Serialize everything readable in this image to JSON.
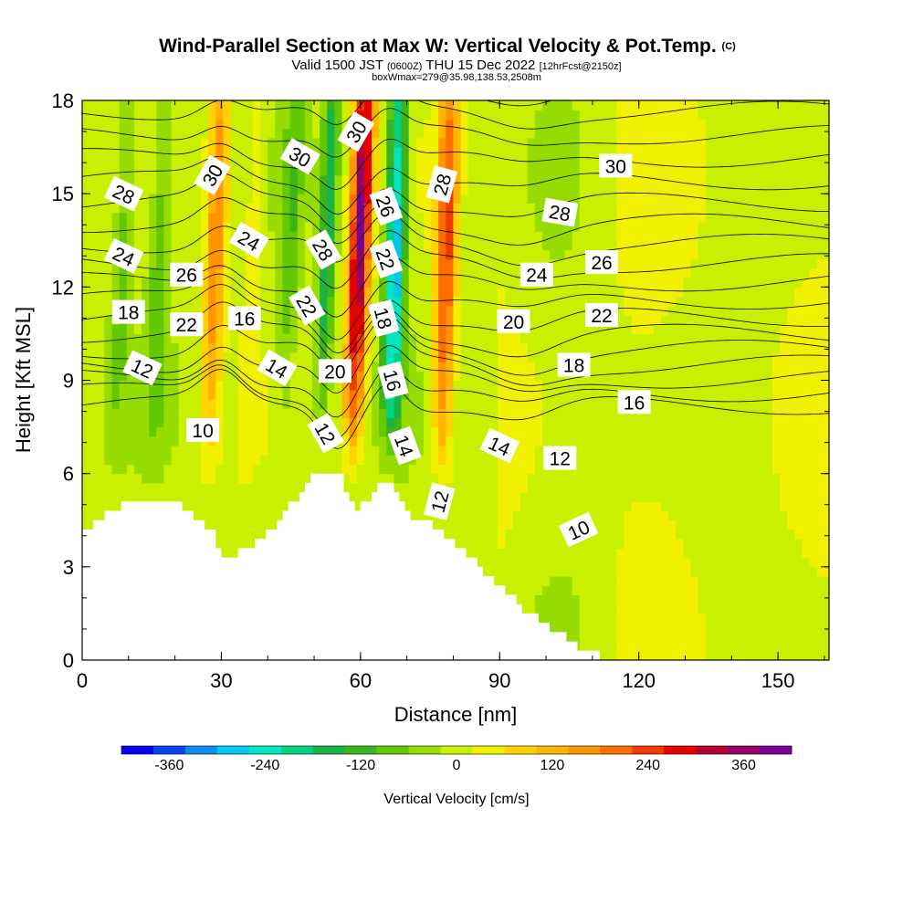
{
  "chart_data": {
    "type": "heatmap",
    "title": "Wind-Parallel Section at Max W: Vertical Velocity & Pot.Temp.",
    "title_mark": "(C)",
    "subtitle_parts": [
      "Valid 1500 JST",
      "(0600Z)",
      "THU 15 Dec 2022",
      "[12hrFcst@2150z]"
    ],
    "subtitle2": "boxWmax=279@35.98,138.53,2508m",
    "xlabel": "Distance [nm]",
    "ylabel": "Height [Kft MSL]",
    "xlim": [
      0,
      161
    ],
    "ylim": [
      0,
      18
    ],
    "xticks": [
      0,
      30,
      60,
      90,
      120,
      150
    ],
    "yticks": [
      0,
      3,
      6,
      9,
      12,
      15,
      18
    ],
    "colorbar": {
      "label": "Vertical Velocity [cm/s]",
      "ticks": [
        -360,
        -240,
        -120,
        0,
        120,
        240,
        360
      ],
      "min": -420,
      "max": 420,
      "colors": [
        "#0a00f0",
        "#0a46f0",
        "#0a8cf0",
        "#00c8f0",
        "#00e6c0",
        "#00d282",
        "#19b446",
        "#3cb41e",
        "#64c800",
        "#96dc00",
        "#c8f000",
        "#f0f000",
        "#ffd200",
        "#ffb400",
        "#ff9600",
        "#ff6e00",
        "#f03c00",
        "#e60000",
        "#b40032",
        "#960064",
        "#780096"
      ]
    },
    "terrain_profile": [
      [
        0,
        4.1
      ],
      [
        2,
        4.4
      ],
      [
        4,
        4.6
      ],
      [
        7,
        4.9
      ],
      [
        9,
        5.1
      ],
      [
        15,
        5.1
      ],
      [
        20,
        5.0
      ],
      [
        22,
        4.8
      ],
      [
        25,
        4.5
      ],
      [
        28,
        4.0
      ],
      [
        30,
        3.3
      ],
      [
        32,
        3.4
      ],
      [
        35,
        3.6
      ],
      [
        38,
        3.9
      ],
      [
        40,
        4.2
      ],
      [
        43,
        4.7
      ],
      [
        46,
        5.3
      ],
      [
        49,
        6.0
      ],
      [
        55,
        6.0
      ],
      [
        57,
        5.2
      ],
      [
        59,
        4.8
      ],
      [
        61,
        5.2
      ],
      [
        63,
        5.6
      ],
      [
        66,
        5.6
      ],
      [
        68,
        5.3
      ],
      [
        70,
        4.6
      ],
      [
        73,
        4.6
      ],
      [
        76,
        4.3
      ],
      [
        79,
        3.9
      ],
      [
        82,
        3.5
      ],
      [
        85,
        3.0
      ],
      [
        88,
        2.6
      ],
      [
        91,
        2.2
      ],
      [
        94,
        1.7
      ],
      [
        97,
        1.4
      ],
      [
        100,
        1.1
      ],
      [
        103,
        0.8
      ],
      [
        106,
        0.5
      ],
      [
        108,
        0.3
      ],
      [
        110,
        0.3
      ]
    ],
    "vertical_velocity_features": [
      {
        "x": 28,
        "y": 14,
        "value": 180,
        "width": 5
      },
      {
        "x": 36,
        "y": 15,
        "value": 60,
        "width": 4
      },
      {
        "x": 59,
        "y": 14,
        "value": 380,
        "width": 5
      },
      {
        "x": 67,
        "y": 13,
        "value": -300,
        "width": 5
      },
      {
        "x": 78,
        "y": 13,
        "value": 240,
        "width": 5
      },
      {
        "x": 52,
        "y": 14,
        "value": -180,
        "width": 4
      },
      {
        "x": 16,
        "y": 13,
        "value": -90,
        "width": 6
      },
      {
        "x": 44,
        "y": 14,
        "value": -90,
        "width": 5
      },
      {
        "x": 8,
        "y": 14,
        "value": -80,
        "width": 5
      }
    ],
    "theta_contour_labels": [
      {
        "text": "30",
        "x": 28,
        "y": 15.6,
        "angle": -60
      },
      {
        "text": "28",
        "x": 9,
        "y": 15.0,
        "angle": 25
      },
      {
        "text": "24",
        "x": 9,
        "y": 13.0,
        "angle": 25
      },
      {
        "text": "26",
        "x": 22.5,
        "y": 12.4,
        "angle": 0
      },
      {
        "text": "18",
        "x": 10,
        "y": 11.2,
        "angle": 0
      },
      {
        "text": "22",
        "x": 22.5,
        "y": 10.8,
        "angle": 0
      },
      {
        "text": "12",
        "x": 13,
        "y": 9.4,
        "angle": 25
      },
      {
        "text": "10",
        "x": 26,
        "y": 7.4,
        "angle": 0
      },
      {
        "text": "24",
        "x": 36,
        "y": 13.5,
        "angle": 30
      },
      {
        "text": "16",
        "x": 35,
        "y": 11.0,
        "angle": 0
      },
      {
        "text": "30",
        "x": 47,
        "y": 16.2,
        "angle": 30
      },
      {
        "text": "14",
        "x": 42,
        "y": 9.4,
        "angle": 30
      },
      {
        "text": "28",
        "x": 52,
        "y": 13.2,
        "angle": 60
      },
      {
        "text": "22",
        "x": 48.5,
        "y": 11.4,
        "angle": 60
      },
      {
        "text": "20",
        "x": 54.5,
        "y": 9.3,
        "angle": 0
      },
      {
        "text": "12",
        "x": 52.5,
        "y": 7.3,
        "angle": 60
      },
      {
        "text": "30",
        "x": 59,
        "y": 17.0,
        "angle": -60
      },
      {
        "text": "26",
        "x": 65.5,
        "y": 14.6,
        "angle": 70
      },
      {
        "text": "22",
        "x": 65.5,
        "y": 12.9,
        "angle": 70
      },
      {
        "text": "18",
        "x": 65,
        "y": 11.0,
        "angle": 75
      },
      {
        "text": "16",
        "x": 67,
        "y": 9.0,
        "angle": 75
      },
      {
        "text": "14",
        "x": 69.5,
        "y": 6.9,
        "angle": 70
      },
      {
        "text": "12",
        "x": 77,
        "y": 5.1,
        "angle": -75
      },
      {
        "text": "28",
        "x": 77.5,
        "y": 15.3,
        "angle": -75
      },
      {
        "text": "24",
        "x": 98,
        "y": 12.4,
        "angle": 0
      },
      {
        "text": "20",
        "x": 93,
        "y": 10.9,
        "angle": 0
      },
      {
        "text": "14",
        "x": 90,
        "y": 6.9,
        "angle": 25
      },
      {
        "text": "12",
        "x": 103,
        "y": 6.5,
        "angle": 0
      },
      {
        "text": "10",
        "x": 107,
        "y": 4.2,
        "angle": -25
      },
      {
        "text": "30",
        "x": 115,
        "y": 15.9,
        "angle": 0
      },
      {
        "text": "28",
        "x": 103,
        "y": 14.4,
        "angle": 10
      },
      {
        "text": "26",
        "x": 112,
        "y": 12.8,
        "angle": 0
      },
      {
        "text": "22",
        "x": 112,
        "y": 11.1,
        "angle": 0
      },
      {
        "text": "18",
        "x": 106,
        "y": 9.5,
        "angle": 0
      },
      {
        "text": "16",
        "x": 119,
        "y": 8.3,
        "angle": 0
      }
    ]
  }
}
